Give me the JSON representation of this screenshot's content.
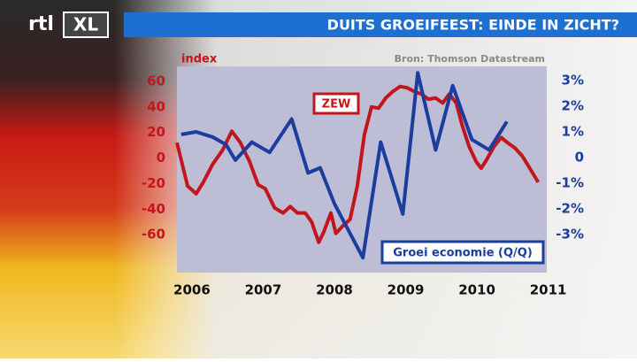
{
  "logo": {
    "part1": "rtl",
    "part2": "XL"
  },
  "chart_data": {
    "type": "line",
    "title": "DUITS GROEIFEEST: EINDE IN ZICHT?",
    "ylabel": "index",
    "source": "Bron: Thomson Datastream",
    "xlim": [
      2005.79,
      2010.98
    ],
    "xticks": [
      2006,
      2007,
      2008,
      2009,
      2010,
      2011
    ],
    "ylim": [
      -89.7,
      71.7
    ],
    "yticks": [
      -60,
      -40,
      -20,
      0,
      20,
      40,
      60
    ],
    "y2lim": [
      -4.48,
      3.55
    ],
    "y2ticks": [
      {
        "value": -3,
        "label": "-3%"
      },
      {
        "value": -2,
        "label": "-2%"
      },
      {
        "value": -1,
        "label": "-1%"
      },
      0,
      {
        "value": 1,
        "label": "1%"
      },
      {
        "value": 2,
        "label": "2%"
      },
      {
        "value": 3,
        "label": "3%"
      }
    ],
    "series": [
      {
        "name": "ZEW",
        "color": "#c3161c",
        "x": [
          2005.79,
          2005.94,
          2006.06,
          2006.16,
          2006.29,
          2006.43,
          2006.56,
          2006.68,
          2006.81,
          2006.93,
          2007.03,
          2007.16,
          2007.28,
          2007.38,
          2007.48,
          2007.59,
          2007.68,
          2007.78,
          2007.85,
          2007.95,
          2008.02,
          2008.12,
          2008.22,
          2008.32,
          2008.42,
          2008.52,
          2008.62,
          2008.72,
          2008.82,
          2008.92,
          2009.02,
          2009.12,
          2009.22,
          2009.32,
          2009.42,
          2009.52,
          2009.61,
          2009.71,
          2009.79,
          2009.89,
          2009.99,
          2010.06,
          2010.14,
          2010.24,
          2010.34,
          2010.43,
          2010.53,
          2010.63,
          2010.73,
          2010.86
        ],
        "values": [
          12,
          -22,
          -28,
          -19,
          -5,
          6,
          21,
          12,
          -3,
          -21,
          -24,
          -39,
          -43,
          -38,
          -43,
          -43,
          -50,
          -66,
          -58,
          -43,
          -59,
          -53,
          -48,
          -22,
          18,
          40,
          39,
          47,
          52,
          56,
          55,
          52,
          50,
          46,
          47,
          43,
          50,
          43,
          26,
          9,
          -3,
          -8,
          -1,
          9,
          16,
          12,
          8,
          2,
          -7,
          -19
        ]
      },
      {
        "name": "Groei economie (Q/Q)",
        "color": "#1b3e9e",
        "axis": "y2",
        "x": [
          2005.85,
          2006.06,
          2006.29,
          2006.48,
          2006.61,
          2006.84,
          2007.09,
          2007.4,
          2007.63,
          2007.8,
          2008.0,
          2008.4,
          2008.65,
          2008.96,
          2009.17,
          2009.42,
          2009.66,
          2009.93,
          2010.17,
          2010.42
        ],
        "values": [
          0.9,
          1.0,
          0.8,
          0.5,
          -0.1,
          0.6,
          0.2,
          1.5,
          -0.6,
          -0.4,
          -1.8,
          -3.9,
          0.6,
          -2.2,
          3.3,
          0.3,
          2.8,
          0.7,
          0.3,
          1.4
        ]
      }
    ]
  }
}
